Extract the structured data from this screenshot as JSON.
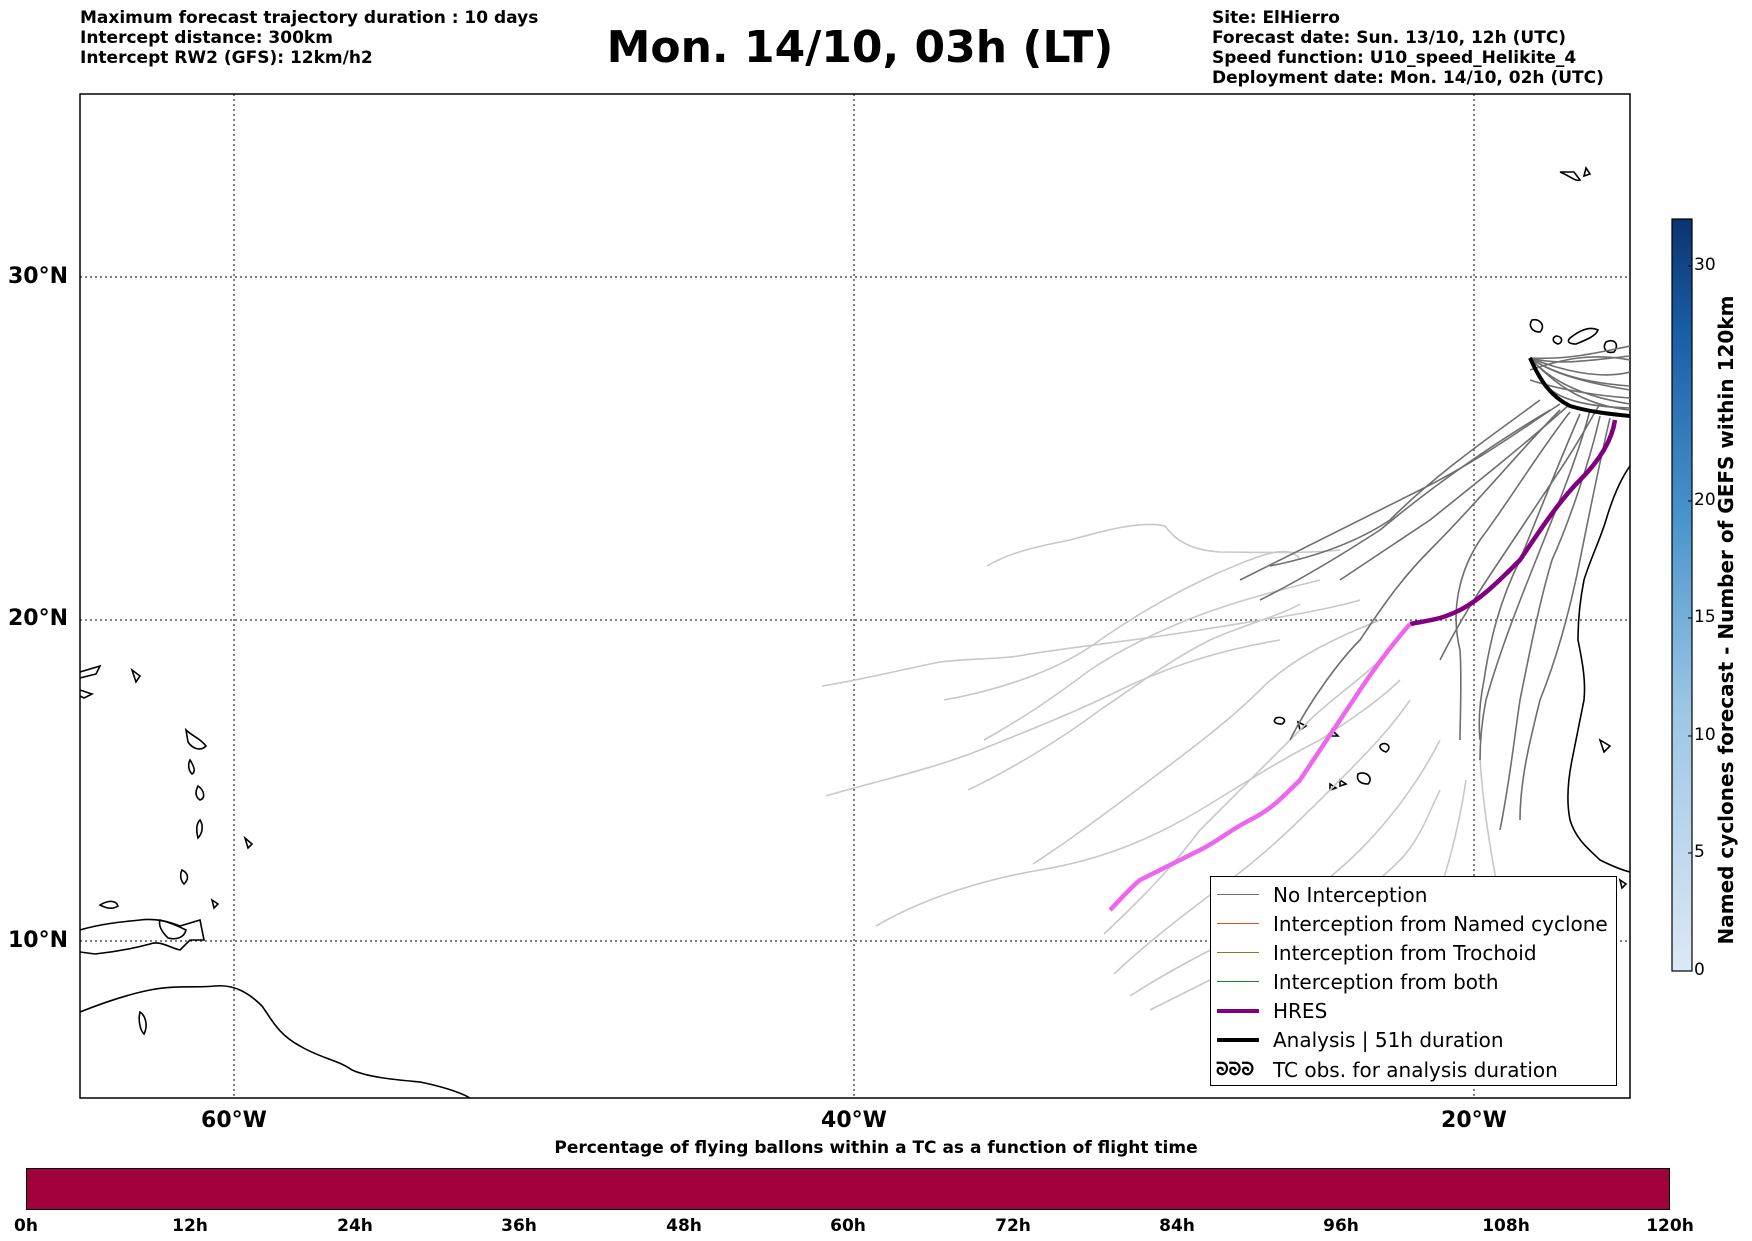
{
  "header": {
    "left_lines": [
      "Maximum forecast trajectory duration : 10 days",
      "Intercept distance: 300km",
      "Intercept RW2 (GFS):  12km/h2"
    ],
    "title": "Mon. 14/10, 03h (LT)",
    "right_lines": [
      "Site: ElHierro",
      "Forecast date: Sun. 13/10, 12h (UTC)",
      "Speed function: U10_speed_Helikite_4",
      "Deployment date: Mon. 14/10, 02h (UTC)"
    ]
  },
  "map": {
    "lat_labels": [
      "30°N",
      "20°N",
      "10°N"
    ],
    "lon_labels": [
      "60°W",
      "40°W",
      "20°W"
    ],
    "colors": {
      "no_interception": "#6e6e6e",
      "light_track": "#c8c8c8",
      "named_cyclone": "#e8501a",
      "trochoid": "#808020",
      "both": "#1a8a1a",
      "hres": "#800080",
      "hres_light": "#ee66ee",
      "analysis": "#000000",
      "coast": "#000000"
    }
  },
  "legend": {
    "items": [
      {
        "label": "No Interception",
        "color": "#6e6e6e",
        "width": 1.5
      },
      {
        "label": "Interception from Named cyclone",
        "color": "#e8501a",
        "width": 1.5
      },
      {
        "label": "Interception from Trochoid",
        "color": "#808020",
        "width": 1.5
      },
      {
        "label": "Interception from both",
        "color": "#1a8a1a",
        "width": 1.5
      },
      {
        "label": "HRES",
        "color": "#800080",
        "width": 4
      },
      {
        "label": "Analysis | 51h duration",
        "color": "#000000",
        "width": 4
      }
    ],
    "tc_icon": "ᘐᘐᘐ",
    "tc_label": "TC obs. for analysis duration"
  },
  "colorbar_vertical": {
    "title": "Named cyclones forecast - Number of GEFS within 120km",
    "ticks": [
      "0",
      "5",
      "10",
      "15",
      "20",
      "30"
    ],
    "range": [
      0,
      32
    ]
  },
  "colorbar_horizontal": {
    "title": "Percentage of flying ballons within a TC as a function of flight time",
    "ticks": [
      "0h",
      "12h",
      "24h",
      "36h",
      "48h",
      "60h",
      "72h",
      "84h",
      "96h",
      "108h",
      "120h"
    ],
    "color": "#a0003c"
  }
}
